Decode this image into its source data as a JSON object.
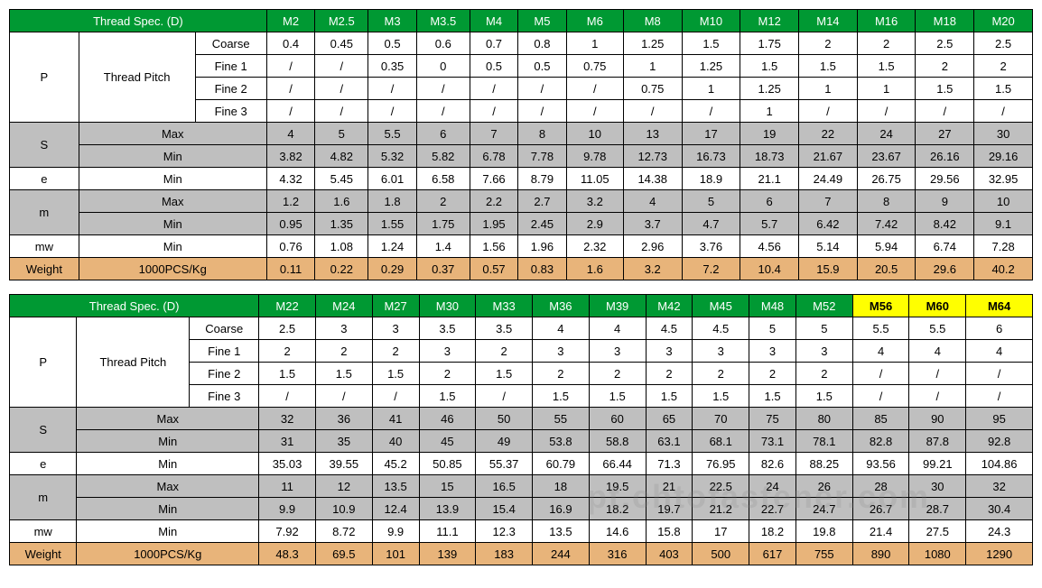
{
  "table1": {
    "header_label": "Thread Spec. (D)",
    "sizes": [
      "M2",
      "M2.5",
      "M3",
      "M3.5",
      "M4",
      "M5",
      "M6",
      "M8",
      "M10",
      "M12",
      "M14",
      "M16",
      "M18",
      "M20"
    ],
    "size_hl": [
      false,
      false,
      false,
      false,
      false,
      false,
      false,
      false,
      false,
      false,
      false,
      false,
      false,
      false
    ],
    "rows": [
      {
        "g": "P",
        "gspan": 4,
        "sub": "Thread Pitch",
        "subspan": 4,
        "lbl": "Coarse",
        "cls": "row-white",
        "vals": [
          "0.4",
          "0.45",
          "0.5",
          "0.6",
          "0.7",
          "0.8",
          "1",
          "1.25",
          "1.5",
          "1.75",
          "2",
          "2",
          "2.5",
          "2.5"
        ]
      },
      {
        "lbl": "Fine 1",
        "cls": "row-white",
        "vals": [
          "/",
          "/",
          "0.35",
          "0",
          "0.5",
          "0.5",
          "0.75",
          "1",
          "1.25",
          "1.5",
          "1.5",
          "1.5",
          "2",
          "2"
        ]
      },
      {
        "lbl": "Fine 2",
        "cls": "row-white",
        "vals": [
          "/",
          "/",
          "/",
          "/",
          "/",
          "/",
          "/",
          "0.75",
          "1",
          "1.25",
          "1",
          "1",
          "1.5",
          "1.5"
        ]
      },
      {
        "lbl": "Fine 3",
        "cls": "row-white",
        "vals": [
          "/",
          "/",
          "/",
          "/",
          "/",
          "/",
          "/",
          "/",
          "/",
          "1",
          "/",
          "/",
          "/",
          "/"
        ]
      },
      {
        "g": "S",
        "gspan": 2,
        "lbl": "Max",
        "lblspan": 2,
        "cls": "row-gray",
        "vals": [
          "4",
          "5",
          "5.5",
          "6",
          "7",
          "8",
          "10",
          "13",
          "17",
          "19",
          "22",
          "24",
          "27",
          "30"
        ]
      },
      {
        "lbl": "Min",
        "lblspan": 2,
        "cls": "row-gray",
        "vals": [
          "3.82",
          "4.82",
          "5.32",
          "5.82",
          "6.78",
          "7.78",
          "9.78",
          "12.73",
          "16.73",
          "18.73",
          "21.67",
          "23.67",
          "26.16",
          "29.16"
        ]
      },
      {
        "g": "e",
        "gspan": 1,
        "lbl": "Min",
        "lblspan": 2,
        "cls": "row-white",
        "vals": [
          "4.32",
          "5.45",
          "6.01",
          "6.58",
          "7.66",
          "8.79",
          "11.05",
          "14.38",
          "18.9",
          "21.1",
          "24.49",
          "26.75",
          "29.56",
          "32.95"
        ]
      },
      {
        "g": "m",
        "gspan": 2,
        "lbl": "Max",
        "lblspan": 2,
        "cls": "row-gray",
        "vals": [
          "1.2",
          "1.6",
          "1.8",
          "2",
          "2.2",
          "2.7",
          "3.2",
          "4",
          "5",
          "6",
          "7",
          "8",
          "9",
          "10"
        ]
      },
      {
        "lbl": "Min",
        "lblspan": 2,
        "cls": "row-gray",
        "vals": [
          "0.95",
          "1.35",
          "1.55",
          "1.75",
          "1.95",
          "2.45",
          "2.9",
          "3.7",
          "4.7",
          "5.7",
          "6.42",
          "7.42",
          "8.42",
          "9.1"
        ]
      },
      {
        "g": "mw",
        "gspan": 1,
        "lbl": "Min",
        "lblspan": 2,
        "cls": "row-white",
        "vals": [
          "0.76",
          "1.08",
          "1.24",
          "1.4",
          "1.56",
          "1.96",
          "2.32",
          "2.96",
          "3.76",
          "4.56",
          "5.14",
          "5.94",
          "6.74",
          "7.28"
        ]
      },
      {
        "g": "Weight",
        "gspan": 1,
        "lbl": "1000PCS/Kg",
        "lblspan": 2,
        "cls": "row-tan",
        "vals": [
          "0.11",
          "0.22",
          "0.29",
          "0.37",
          "0.57",
          "0.83",
          "1.6",
          "3.2",
          "7.2",
          "10.4",
          "15.9",
          "20.5",
          "29.6",
          "40.2"
        ]
      }
    ]
  },
  "table2": {
    "header_label": "Thread Spec. (D)",
    "sizes": [
      "M22",
      "M24",
      "M27",
      "M30",
      "M33",
      "M36",
      "M39",
      "M42",
      "M45",
      "M48",
      "M52",
      "M56",
      "M60",
      "M64"
    ],
    "size_hl": [
      false,
      false,
      false,
      false,
      false,
      false,
      false,
      false,
      false,
      false,
      false,
      true,
      true,
      true
    ],
    "rows": [
      {
        "g": "P",
        "gspan": 4,
        "sub": "Thread Pitch",
        "subspan": 4,
        "lbl": "Coarse",
        "cls": "row-white",
        "vals": [
          "2.5",
          "3",
          "3",
          "3.5",
          "3.5",
          "4",
          "4",
          "4.5",
          "4.5",
          "5",
          "5",
          "5.5",
          "5.5",
          "6"
        ]
      },
      {
        "lbl": "Fine 1",
        "cls": "row-white",
        "vals": [
          "2",
          "2",
          "2",
          "3",
          "2",
          "3",
          "3",
          "3",
          "3",
          "3",
          "3",
          "4",
          "4",
          "4"
        ]
      },
      {
        "lbl": "Fine 2",
        "cls": "row-white",
        "vals": [
          "1.5",
          "1.5",
          "1.5",
          "2",
          "1.5",
          "2",
          "2",
          "2",
          "2",
          "2",
          "2",
          "/",
          "/",
          "/"
        ]
      },
      {
        "lbl": "Fine 3",
        "cls": "row-white",
        "vals": [
          "/",
          "/",
          "/",
          "1.5",
          "/",
          "1.5",
          "1.5",
          "1.5",
          "1.5",
          "1.5",
          "1.5",
          "/",
          "/",
          "/"
        ]
      },
      {
        "g": "S",
        "gspan": 2,
        "lbl": "Max",
        "lblspan": 2,
        "cls": "row-gray",
        "vals": [
          "32",
          "36",
          "41",
          "46",
          "50",
          "55",
          "60",
          "65",
          "70",
          "75",
          "80",
          "85",
          "90",
          "95"
        ]
      },
      {
        "lbl": "Min",
        "lblspan": 2,
        "cls": "row-gray",
        "vals": [
          "31",
          "35",
          "40",
          "45",
          "49",
          "53.8",
          "58.8",
          "63.1",
          "68.1",
          "73.1",
          "78.1",
          "82.8",
          "87.8",
          "92.8"
        ]
      },
      {
        "g": "e",
        "gspan": 1,
        "lbl": "Min",
        "lblspan": 2,
        "cls": "row-white",
        "vals": [
          "35.03",
          "39.55",
          "45.2",
          "50.85",
          "55.37",
          "60.79",
          "66.44",
          "71.3",
          "76.95",
          "82.6",
          "88.25",
          "93.56",
          "99.21",
          "104.86"
        ]
      },
      {
        "g": "m",
        "gspan": 2,
        "lbl": "Max",
        "lblspan": 2,
        "cls": "row-gray",
        "vals": [
          "11",
          "12",
          "13.5",
          "15",
          "16.5",
          "18",
          "19.5",
          "21",
          "22.5",
          "24",
          "26",
          "28",
          "30",
          "32"
        ]
      },
      {
        "lbl": "Min",
        "lblspan": 2,
        "cls": "row-gray",
        "vals": [
          "9.9",
          "10.9",
          "12.4",
          "13.9",
          "15.4",
          "16.9",
          "18.2",
          "19.7",
          "21.2",
          "22.7",
          "24.7",
          "26.7",
          "28.7",
          "30.4"
        ]
      },
      {
        "g": "mw",
        "gspan": 1,
        "lbl": "Min",
        "lblspan": 2,
        "cls": "row-white",
        "vals": [
          "7.92",
          "8.72",
          "9.9",
          "11.1",
          "12.3",
          "13.5",
          "14.6",
          "15.8",
          "17",
          "18.2",
          "19.8",
          "21.4",
          "27.5",
          "24.3"
        ]
      },
      {
        "g": "Weight",
        "gspan": 1,
        "lbl": "1000PCS/Kg",
        "lblspan": 2,
        "cls": "row-tan",
        "vals": [
          "48.3",
          "69.5",
          "101",
          "139",
          "183",
          "244",
          "316",
          "403",
          "500",
          "617",
          "755",
          "890",
          "1080",
          "1290"
        ]
      }
    ]
  },
  "watermark": "pt.chtofastener.com"
}
